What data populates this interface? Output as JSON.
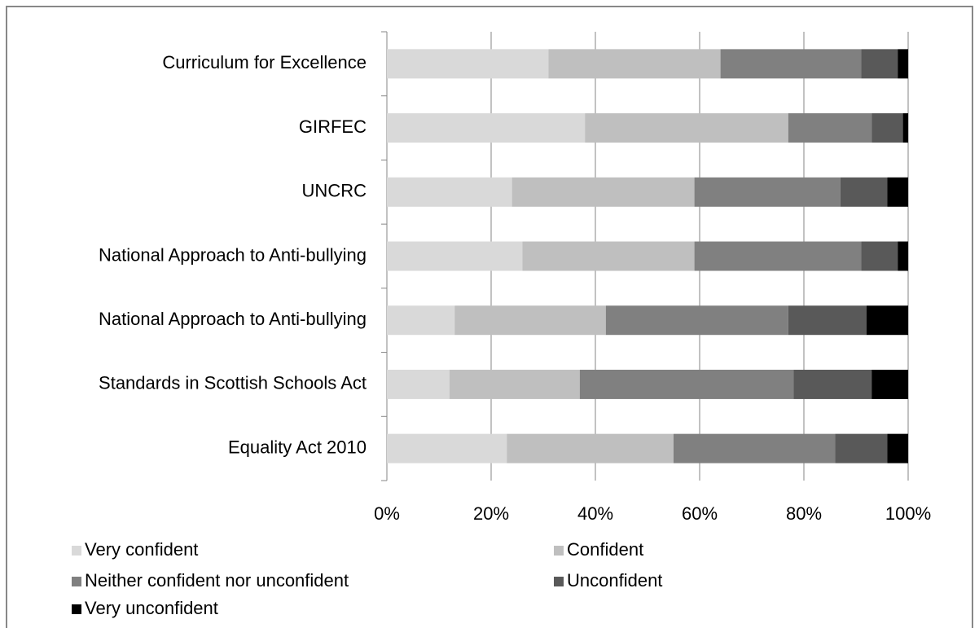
{
  "chart_data": {
    "type": "stacked_barh",
    "categories": [
      "Curriculum for Excellence",
      "GIRFEC",
      "UNCRC",
      "National Approach to Anti-bullying",
      "National Approach to Anti-bullying",
      "Standards in Scottish Schools Act",
      "Equality Act 2010"
    ],
    "series": [
      {
        "name": "Very confident",
        "color": "#d9d9d9",
        "values": [
          31,
          38,
          24,
          26,
          13,
          12,
          23
        ]
      },
      {
        "name": "Confident",
        "color": "#bfbfbf",
        "values": [
          33,
          39,
          35,
          33,
          29,
          25,
          32
        ]
      },
      {
        "name": "Neither confident nor unconfident",
        "color": "#808080",
        "values": [
          27,
          16,
          28,
          32,
          35,
          41,
          31
        ]
      },
      {
        "name": "Unconfident",
        "color": "#595959",
        "values": [
          7,
          6,
          9,
          7,
          15,
          15,
          10
        ]
      },
      {
        "name": "Very unconfident",
        "color": "#000000",
        "values": [
          2,
          1,
          4,
          2,
          8,
          7,
          4
        ]
      }
    ],
    "xlim": [
      0,
      100
    ],
    "xticks": [
      {
        "value": 0,
        "label": "0%"
      },
      {
        "value": 20,
        "label": "20%"
      },
      {
        "value": 40,
        "label": "40%"
      },
      {
        "value": 60,
        "label": "60%"
      },
      {
        "value": 80,
        "label": "80%"
      },
      {
        "value": 100,
        "label": "100%"
      }
    ],
    "grid": true,
    "legend": "bottom"
  }
}
